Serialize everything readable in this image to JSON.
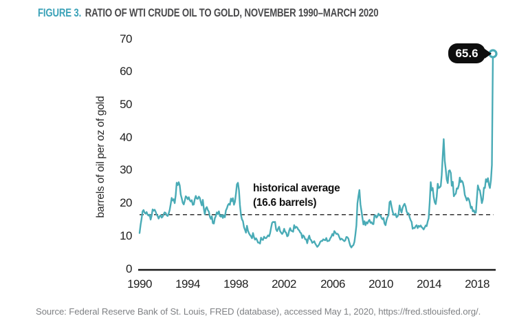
{
  "figure": {
    "label": "FIGURE 3.",
    "title": "RATIO OF WTI CRUDE OIL TO GOLD, NOVEMBER 1990–MARCH 2020",
    "source": "Source: Federal Reserve Bank of St. Louis, FRED (database), accessed May 1, 2020, https://fred.stlouisfed.org/."
  },
  "colors": {
    "line_teal": "#49abb6",
    "title_teal": "#3ba2b8",
    "title_dark": "#4a4a4c",
    "badge_black": "#0e0e0e",
    "source_gray": "#7f8184"
  },
  "chart_data": {
    "type": "line",
    "title": "Ratio of WTI crude oil to gold, November 1990–March 2020",
    "xlabel": "",
    "ylabel": "barrels of oil per oz of gold",
    "ylim": [
      0,
      70
    ],
    "yticks": [
      "0",
      "10",
      "20",
      "30",
      "40",
      "50",
      "60",
      "70"
    ],
    "xticks": [
      "1990",
      "1994",
      "1998",
      "2002",
      "2006",
      "2010",
      "2014",
      "2018"
    ],
    "x_start": "1990-11",
    "x_end": "2020-03",
    "frequency": "monthly",
    "grid": false,
    "legend_position": "none",
    "reference_line": {
      "value": 16.6,
      "label_line1": "historical average",
      "label_line2": "(16.6 barrels)"
    },
    "end_label": "65.6",
    "end_value": 65.6,
    "series": [
      {
        "name": "WTI crude oil to gold ratio (barrels of oil per oz of gold)",
        "values": [
          11.0,
          13.5,
          15.3,
          17.6,
          18.0,
          17.2,
          16.9,
          17.4,
          16.6,
          16.3,
          16.6,
          15.1,
          16.2,
          18.2,
          17.8,
          18.1,
          17.5,
          16.6,
          16.2,
          15.4,
          16.1,
          16.4,
          15.7,
          16.0,
          16.7,
          17.3,
          17.1,
          16.4,
          16.2,
          16.9,
          18.0,
          19.8,
          21.7,
          20.9,
          21.3,
          20.1,
          22.6,
          26.3,
          25.6,
          26.5,
          25.5,
          22.7,
          21.6,
          20.2,
          19.7,
          20.8,
          22.2,
          21.9,
          21.3,
          21.9,
          21.0,
          20.6,
          21.0,
          19.6,
          19.7,
          21.3,
          22.3,
          21.5,
          21.4,
          22.1,
          21.7,
          20.4,
          19.4,
          21.1,
          18.4,
          16.7,
          18.5,
          18.9,
          18.0,
          17.5,
          16.0,
          15.3,
          16.1,
          14.0,
          13.9,
          15.5,
          16.2,
          17.3,
          16.8,
          17.6,
          16.2,
          16.0,
          16.5,
          15.6,
          16.4,
          15.8,
          17.9,
          18.5,
          19.5,
          19.9,
          19.6,
          21.5,
          20.7,
          21.6,
          19.6,
          20.5,
          23.0,
          25.8,
          26.3,
          24.0,
          19.5,
          16.5,
          15.2,
          14.6,
          12.8,
          12.0,
          11.1,
          13.2,
          11.7,
          10.9,
          10.4,
          10.0,
          9.4,
          11.0,
          9.7,
          9.0,
          9.4,
          8.9,
          8.1,
          8.1,
          7.8,
          9.6,
          9.0,
          8.9,
          9.9,
          9.5,
          9.4,
          9.8,
          10.3,
          10.0,
          10.9,
          12.6,
          14.1,
          14.4,
          14.3,
          14.4,
          12.1,
          11.6,
          12.3,
          12.9,
          11.6,
          11.1,
          10.7,
          11.2,
          12.3,
          11.4,
          11.1,
          10.0,
          10.2,
          11.7,
          12.5,
          11.7,
          11.6,
          11.4,
          13.4,
          12.5,
          12.9,
          12.7,
          12.1,
          11.8,
          11.2,
          10.9,
          9.5,
          10.3,
          9.9,
          9.1,
          9.1,
          7.9,
          9.3,
          10.2,
          9.1,
          8.8,
          8.0,
          8.2,
          8.5,
          7.8,
          7.3,
          6.8,
          7.1,
          7.6,
          8.3,
          8.6,
          8.6,
          9.1,
          8.9,
          8.8,
          9.5,
          8.5,
          8.6,
          8.7,
          9.4,
          9.9,
          10.7,
          10.2,
          11.6,
          11.2,
          10.7,
          10.8,
          10.5,
          9.7,
          9.0,
          9.3,
          9.1,
          8.8,
          8.5,
          8.8,
          9.8,
          9.7,
          9.3,
          8.1,
          7.1,
          6.6,
          7.1,
          7.3,
          8.3,
          10.5,
          13.3,
          20.0,
          22.2,
          24.1,
          19.7,
          17.8,
          15.6,
          13.6,
          14.6,
          13.4,
          14.3,
          13.9,
          14.6,
          15.0,
          14.1,
          14.3,
          13.8,
          13.7,
          16.3,
          16.4,
          15.7,
          16.1,
          16.9,
          16.4,
          16.3,
          15.6,
          15.2,
          15.6,
          13.9,
          13.4,
          14.9,
          15.9,
          16.4,
          20.4,
          20.7,
          19.1,
          17.6,
          16.6,
          16.5,
          16.9,
          15.8,
          16.1,
          16.7,
          19.4,
          18.1,
          17.2,
          18.7,
          19.4,
          19.9,
          19.1,
          17.6,
          16.9,
          17.0,
          15.8,
          14.9,
          14.4,
          12.3,
          12.6,
          12.5,
          13.1,
          13.4,
          12.5,
          13.2,
          12.9,
          13.3,
          12.8,
          12.5,
          12.1,
          12.7,
          13.3,
          13.1,
          14.5,
          15.5,
          20.3,
          26.5,
          24.0,
          24.7,
          22.0,
          20.4,
          19.8,
          22.1,
          26.0,
          24.7,
          24.9,
          25.3,
          28.7,
          34.6,
          39.6,
          33.0,
          30.3,
          27.3,
          26.2,
          29.9,
          30.1,
          29.3,
          25.4,
          26.6,
          22.2,
          22.7,
          23.0,
          24.6,
          24.5,
          25.6,
          27.9,
          26.5,
          26.9,
          26.4,
          24.9,
          22.6,
          21.8,
          20.9,
          21.7,
          21.3,
          20.2,
          18.6,
          19.0,
          17.6,
          17.9,
          17.1,
          17.2,
          21.4,
          25.5,
          24.3,
          24.0,
          22.2,
          20.1,
          21.3,
          24.8,
          24.7,
          27.4,
          26.6,
          27.7,
          25.7,
          24.7,
          27.1,
          31.7,
          65.6
        ]
      }
    ]
  }
}
